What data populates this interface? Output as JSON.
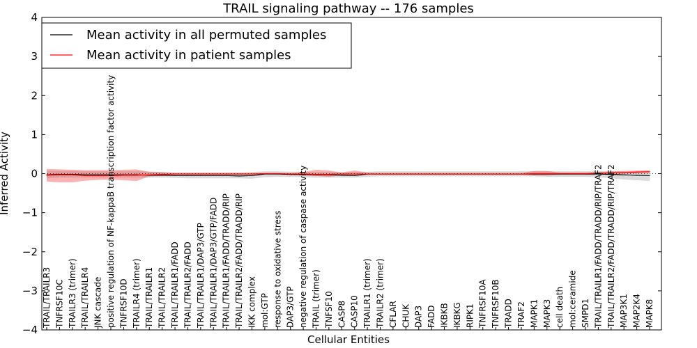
{
  "chart_data": {
    "type": "line",
    "title": "TRAIL signaling pathway -- 176 samples",
    "xlabel": "Cellular Entities",
    "ylabel": "Inferred Activity",
    "ylim": [
      -4,
      4
    ],
    "yticks": [
      "−4",
      "−3",
      "−2",
      "−1",
      "0",
      "1",
      "2",
      "3",
      "4"
    ],
    "grid": false,
    "legend_position": "top-left",
    "categories": [
      "TRAIL/TRAILR3",
      "TNFRSF10C",
      "TRAILR3 (trimer)",
      "TRAIL/TRAILR4",
      "JNK cascade",
      "positive regulation of NF-kappaB transcription factor activity",
      "TNFRSF10D",
      "TRAILR4 (trimer)",
      "TRAIL/TRAILR1",
      "TRAIL/TRAILR2",
      "TRAIL/TRAILR1/FADD",
      "TRAIL/TRAILR2/FADD",
      "TRAIL/TRAILR1/DAP3/GTP",
      "TRAIL/TRAILR1/DAP3/GTP/FADD",
      "TRAIL/TRAILR1/FADD/TRADD/RIP",
      "TRAIL/TRAILR2/FADD/TRADD/RIP",
      "IKK complex",
      "mol:GTP",
      "response to oxidative stress",
      "DAP3/GTP",
      "negative regulation of caspase activity",
      "TRAIL (trimer)",
      "TNFSF10",
      "CASP8",
      "CASP10",
      "TRAILR1 (trimer)",
      "TRAILR2 (trimer)",
      "CFLAR",
      "CHUK",
      "DAP3",
      "FADD",
      "IKBKB",
      "IKBKG",
      "RIPK1",
      "TNFRSF10A",
      "TNFRSF10B",
      "TRADD",
      "TRAF2",
      "MAPK1",
      "MAPK3",
      "cell death",
      "mol:ceramide",
      "SMPD1",
      "TRAIL/TRAILR1/FADD/TRADD/RIP/TRAF2",
      "TRAIL/TRAILR2/FADD/TRADD/RIP/TRAF2",
      "MAP3K1",
      "MAP2K4",
      "MAPK8"
    ],
    "series": [
      {
        "name": "Mean activity in all permuted samples",
        "color": "#000000",
        "values": [
          -0.03,
          -0.02,
          -0.02,
          -0.03,
          -0.03,
          -0.03,
          -0.03,
          -0.03,
          -0.04,
          -0.04,
          -0.05,
          -0.05,
          -0.05,
          -0.05,
          -0.05,
          -0.06,
          -0.05,
          -0.01,
          -0.01,
          -0.02,
          -0.02,
          -0.03,
          -0.03,
          -0.04,
          -0.05,
          -0.01,
          -0.01,
          -0.01,
          -0.01,
          -0.01,
          -0.01,
          -0.01,
          -0.01,
          -0.01,
          -0.01,
          -0.01,
          -0.01,
          -0.01,
          -0.01,
          -0.01,
          -0.01,
          -0.01,
          -0.01,
          -0.01,
          -0.02,
          -0.03,
          -0.04,
          -0.05
        ],
        "band_lower": [
          -0.12,
          -0.1,
          -0.1,
          -0.1,
          -0.1,
          -0.1,
          -0.1,
          -0.1,
          -0.1,
          -0.1,
          -0.11,
          -0.12,
          -0.12,
          -0.12,
          -0.12,
          -0.12,
          -0.13,
          -0.09,
          -0.08,
          -0.08,
          -0.09,
          -0.1,
          -0.1,
          -0.1,
          -0.1,
          -0.08,
          -0.07,
          -0.07,
          -0.07,
          -0.07,
          -0.07,
          -0.07,
          -0.07,
          -0.07,
          -0.07,
          -0.07,
          -0.07,
          -0.07,
          -0.07,
          -0.08,
          -0.08,
          -0.08,
          -0.08,
          -0.09,
          -0.12,
          -0.15,
          -0.17,
          -0.19
        ],
        "band_upper": [
          0.08,
          0.07,
          0.07,
          0.06,
          0.06,
          0.06,
          0.06,
          0.06,
          0.05,
          0.04,
          0.03,
          0.03,
          0.03,
          0.03,
          0.03,
          0.03,
          0.04,
          0.06,
          0.06,
          0.05,
          0.05,
          0.04,
          0.04,
          0.04,
          0.04,
          0.05,
          0.06,
          0.06,
          0.06,
          0.06,
          0.06,
          0.06,
          0.06,
          0.06,
          0.06,
          0.06,
          0.06,
          0.06,
          0.06,
          0.06,
          0.06,
          0.06,
          0.06,
          0.06,
          0.06,
          0.06,
          0.06,
          0.06
        ]
      },
      {
        "name": "Mean activity in patient samples",
        "color": "#ff0000",
        "values": [
          -0.04,
          -0.03,
          -0.03,
          -0.05,
          -0.05,
          -0.05,
          -0.04,
          -0.04,
          -0.03,
          -0.02,
          -0.01,
          -0.01,
          -0.01,
          -0.01,
          -0.01,
          -0.01,
          -0.01,
          0.0,
          0.0,
          -0.01,
          -0.01,
          -0.02,
          -0.02,
          -0.01,
          -0.01,
          -0.01,
          -0.01,
          -0.01,
          -0.01,
          -0.01,
          -0.01,
          -0.01,
          -0.01,
          -0.01,
          -0.01,
          -0.01,
          -0.01,
          -0.01,
          0.0,
          0.0,
          0.0,
          0.0,
          0.0,
          0.01,
          0.02,
          0.03,
          0.04,
          0.05
        ],
        "band_lower": [
          -0.2,
          -0.22,
          -0.22,
          -0.18,
          -0.16,
          -0.15,
          -0.17,
          -0.19,
          -0.07,
          -0.06,
          -0.03,
          -0.03,
          -0.03,
          -0.03,
          -0.03,
          -0.03,
          -0.03,
          -0.02,
          -0.02,
          -0.03,
          -0.04,
          -0.06,
          -0.08,
          -0.04,
          -0.03,
          -0.03,
          -0.03,
          -0.03,
          -0.03,
          -0.03,
          -0.03,
          -0.03,
          -0.03,
          -0.03,
          -0.03,
          -0.03,
          -0.03,
          -0.03,
          -0.05,
          -0.05,
          -0.03,
          -0.03,
          -0.03,
          -0.02,
          -0.01,
          0.0,
          0.01,
          0.02
        ],
        "band_upper": [
          0.12,
          0.11,
          0.1,
          0.09,
          0.09,
          0.09,
          0.1,
          0.11,
          0.05,
          0.04,
          0.02,
          0.02,
          0.02,
          0.02,
          0.02,
          0.02,
          0.02,
          0.02,
          0.02,
          0.02,
          0.04,
          0.1,
          0.08,
          0.03,
          0.08,
          0.03,
          0.02,
          0.02,
          0.02,
          0.02,
          0.02,
          0.02,
          0.02,
          0.02,
          0.02,
          0.02,
          0.02,
          0.02,
          0.07,
          0.07,
          0.03,
          0.03,
          0.03,
          0.04,
          0.06,
          0.07,
          0.08,
          0.09
        ]
      }
    ],
    "reference_line": {
      "y": 0,
      "style": "dotted"
    }
  }
}
